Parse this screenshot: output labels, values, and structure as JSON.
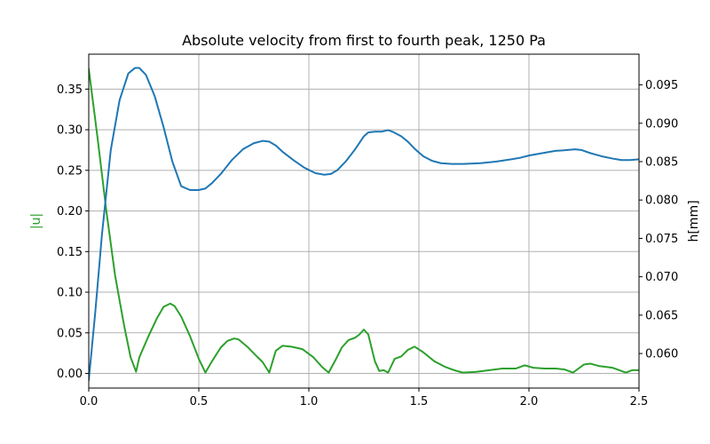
{
  "chart_data": {
    "type": "line",
    "title": "Absolute velocity from first to fourth peak, 1250 Pa",
    "xlabel": "",
    "ylabel_left": "|u|",
    "ylabel_right": "h[mm]",
    "xlim": [
      0,
      2.5
    ],
    "ylim_left": [
      -0.018,
      0.393
    ],
    "ylim_right": [
      0.0555,
      0.099
    ],
    "grid": true,
    "x_ticks": [
      0.0,
      0.5,
      1.0,
      1.5,
      2.0,
      2.5
    ],
    "x_tick_labels": [
      "0.0",
      "0.5",
      "1.0",
      "1.5",
      "2.0",
      "2.5"
    ],
    "y_left_ticks": [
      0.0,
      0.05,
      0.1,
      0.15,
      0.2,
      0.25,
      0.3,
      0.35
    ],
    "y_left_tick_labels": [
      "0.00",
      "0.05",
      "0.10",
      "0.15",
      "0.20",
      "0.25",
      "0.30",
      "0.35"
    ],
    "y_right_ticks": [
      0.06,
      0.065,
      0.07,
      0.075,
      0.08,
      0.085,
      0.09,
      0.095
    ],
    "y_right_tick_labels": [
      "0.060",
      "0.065",
      "0.070",
      "0.075",
      "0.080",
      "0.085",
      "0.090",
      "0.095"
    ],
    "series": [
      {
        "axis": "left",
        "color": "#2ca02c",
        "x": [
          0.0,
          0.04,
          0.08,
          0.12,
          0.16,
          0.19,
          0.215,
          0.23,
          0.27,
          0.31,
          0.34,
          0.37,
          0.39,
          0.42,
          0.46,
          0.5,
          0.53,
          0.56,
          0.6,
          0.63,
          0.66,
          0.68,
          0.72,
          0.76,
          0.79,
          0.82,
          0.85,
          0.88,
          0.92,
          0.97,
          1.02,
          1.06,
          1.09,
          1.12,
          1.15,
          1.18,
          1.21,
          1.23,
          1.25,
          1.27,
          1.3,
          1.32,
          1.34,
          1.36,
          1.39,
          1.42,
          1.45,
          1.48,
          1.52,
          1.57,
          1.62,
          1.66,
          1.7,
          1.76,
          1.82,
          1.88,
          1.94,
          1.98,
          2.02,
          2.07,
          2.12,
          2.16,
          2.2,
          2.25,
          2.28,
          2.32,
          2.38,
          2.41,
          2.44,
          2.47,
          2.5
        ],
        "values": [
          0.375,
          0.29,
          0.2,
          0.12,
          0.06,
          0.02,
          0.002,
          0.02,
          0.045,
          0.068,
          0.082,
          0.086,
          0.083,
          0.07,
          0.046,
          0.018,
          0.001,
          0.015,
          0.032,
          0.04,
          0.043,
          0.042,
          0.033,
          0.022,
          0.014,
          0.001,
          0.028,
          0.034,
          0.033,
          0.03,
          0.02,
          0.008,
          0.001,
          0.016,
          0.032,
          0.041,
          0.044,
          0.048,
          0.054,
          0.048,
          0.015,
          0.003,
          0.004,
          0.001,
          0.018,
          0.021,
          0.029,
          0.033,
          0.026,
          0.015,
          0.008,
          0.004,
          0.001,
          0.002,
          0.004,
          0.006,
          0.006,
          0.01,
          0.007,
          0.006,
          0.006,
          0.005,
          0.001,
          0.011,
          0.012,
          0.009,
          0.007,
          0.004,
          0.001,
          0.004,
          0.004
        ]
      },
      {
        "axis": "right",
        "color": "#1f77b4",
        "x": [
          0.0,
          0.03,
          0.06,
          0.1,
          0.14,
          0.18,
          0.21,
          0.23,
          0.26,
          0.3,
          0.34,
          0.38,
          0.42,
          0.46,
          0.5,
          0.53,
          0.56,
          0.6,
          0.65,
          0.7,
          0.75,
          0.79,
          0.82,
          0.85,
          0.88,
          0.93,
          0.98,
          1.03,
          1.07,
          1.1,
          1.13,
          1.17,
          1.21,
          1.25,
          1.27,
          1.3,
          1.33,
          1.36,
          1.38,
          1.42,
          1.45,
          1.48,
          1.52,
          1.56,
          1.6,
          1.65,
          1.7,
          1.78,
          1.85,
          1.92,
          1.96,
          2.0,
          2.06,
          2.12,
          2.17,
          2.21,
          2.24,
          2.28,
          2.33,
          2.38,
          2.42,
          2.46,
          2.5
        ],
        "values": [
          0.0565,
          0.0655,
          0.0755,
          0.0865,
          0.093,
          0.0965,
          0.0972,
          0.0972,
          0.0963,
          0.0935,
          0.0895,
          0.085,
          0.0818,
          0.0813,
          0.0813,
          0.0815,
          0.0822,
          0.0834,
          0.0852,
          0.0866,
          0.0874,
          0.0877,
          0.0876,
          0.0871,
          0.0863,
          0.0852,
          0.0842,
          0.0835,
          0.0833,
          0.0834,
          0.0839,
          0.0851,
          0.0866,
          0.0883,
          0.0888,
          0.0889,
          0.0889,
          0.0891,
          0.0889,
          0.0883,
          0.0876,
          0.0867,
          0.0857,
          0.0851,
          0.0848,
          0.0847,
          0.0847,
          0.0848,
          0.085,
          0.0853,
          0.0855,
          0.0858,
          0.0861,
          0.0864,
          0.0865,
          0.0866,
          0.0865,
          0.0861,
          0.0857,
          0.0854,
          0.0852,
          0.0852,
          0.0853
        ]
      }
    ]
  }
}
